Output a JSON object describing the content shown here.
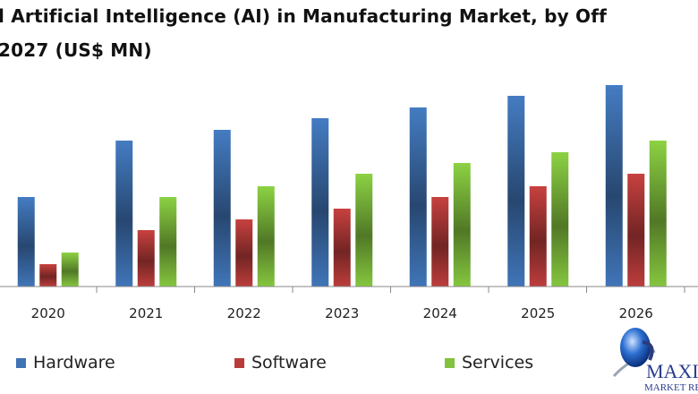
{
  "chart_data": {
    "type": "bar",
    "title_lines": [
      "l Artificial Intelligence (AI) in Manufacturing Market, by Off",
      "2027 (US$ MN)"
    ],
    "xlabel": "",
    "ylabel": "",
    "categories": [
      "2020",
      "2021",
      "2022",
      "2023",
      "2024",
      "2025",
      "2026"
    ],
    "series": [
      {
        "name": "Hardware",
        "color": "#3f73b4",
        "values": [
          100,
          163,
          175,
          188,
          200,
          213,
          225
        ]
      },
      {
        "name": "Software",
        "color": "#b83c3a",
        "values": [
          25,
          63,
          75,
          87,
          100,
          112,
          126
        ]
      },
      {
        "name": "Services",
        "color": "#82c23e",
        "values": [
          38,
          100,
          112,
          126,
          138,
          150,
          163
        ]
      }
    ],
    "ylim": [
      0,
      240
    ],
    "y_axis_shown": false,
    "grid": false,
    "legend_placement": "bottom"
  },
  "logo": {
    "text": "MAXIMIZE MARKET RESEARCH",
    "visible_text": "MAXIM",
    "visible_subtext": "MARKET RE"
  }
}
